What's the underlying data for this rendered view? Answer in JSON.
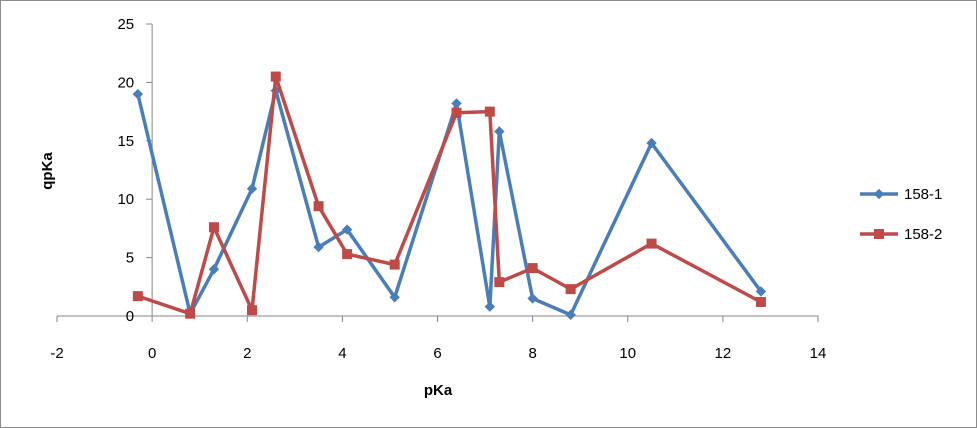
{
  "chart_data": {
    "type": "line",
    "xlabel": "pKa",
    "ylabel": "qpKa",
    "xlim": [
      -2,
      14
    ],
    "ylim": [
      0,
      25
    ],
    "xticks": [
      -2,
      0,
      2,
      4,
      6,
      8,
      10,
      12,
      14
    ],
    "yticks": [
      0,
      5,
      10,
      15,
      20,
      25
    ],
    "grid": false,
    "legend_position": "right",
    "series": [
      {
        "name": "158-1",
        "color": "#4a7ebb",
        "marker": "diamond",
        "x": [
          -0.3,
          0.8,
          1.3,
          2.1,
          2.6,
          3.5,
          4.1,
          5.1,
          6.4,
          7.1,
          7.3,
          8.0,
          8.8,
          10.5,
          12.8
        ],
        "y": [
          19.0,
          0.2,
          4.0,
          10.9,
          19.3,
          5.9,
          7.4,
          1.6,
          18.2,
          0.8,
          15.8,
          1.5,
          0.1,
          14.8,
          2.1
        ]
      },
      {
        "name": "158-2",
        "color": "#be4b48",
        "marker": "square",
        "x": [
          -0.3,
          0.8,
          1.3,
          2.1,
          2.6,
          3.5,
          4.1,
          5.1,
          6.4,
          7.1,
          7.3,
          8.0,
          8.8,
          10.5,
          12.8
        ],
        "y": [
          1.7,
          0.2,
          7.6,
          0.5,
          20.5,
          9.4,
          5.3,
          4.4,
          17.4,
          17.5,
          2.9,
          4.1,
          2.3,
          6.2,
          1.2
        ]
      }
    ]
  }
}
